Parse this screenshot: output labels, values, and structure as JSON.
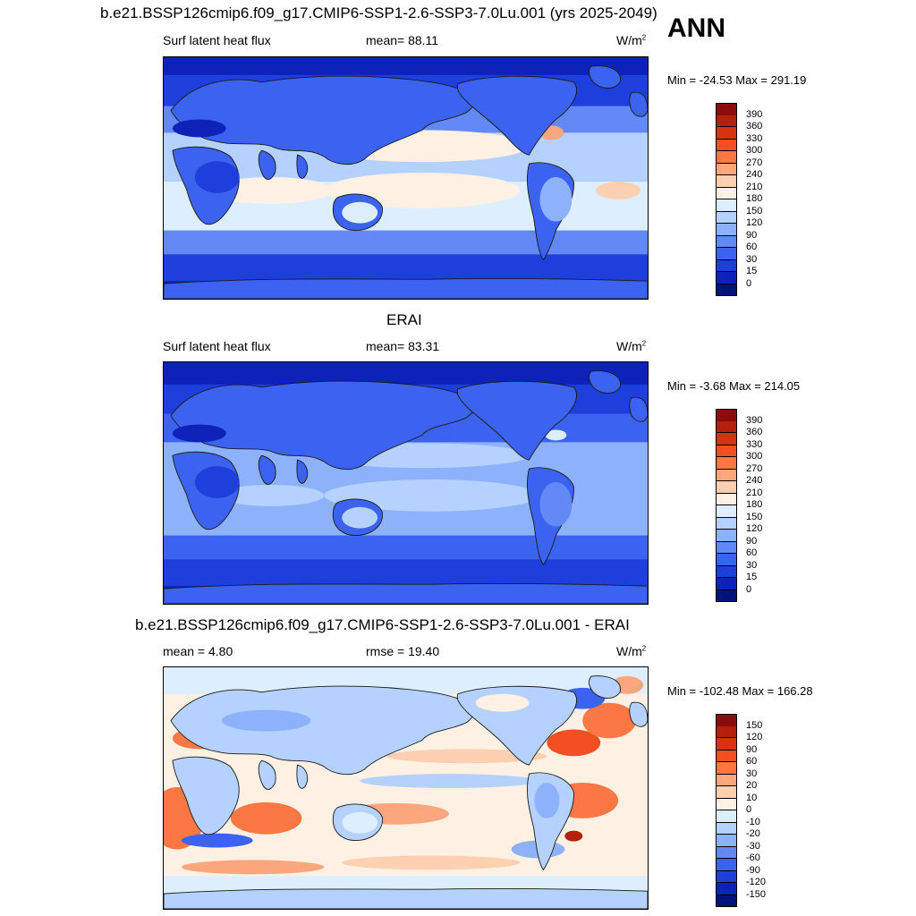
{
  "header": {
    "title": "b.e21.BSSP126cmip6.f09_g17.CMIP6-SSP1-2.6-SSP3-7.0Lu.001 (yrs 2025-2049)",
    "season": "ANN"
  },
  "panels": [
    {
      "id": "model",
      "title": "",
      "left_label": "Surf latent heat flux",
      "center_label": "mean=  88.11",
      "units_base": "W/m",
      "units_exp": "2",
      "minmax": "Min = -24.53 Max = 291.19",
      "colorbar": {
        "levels": [
          "390",
          "360",
          "330",
          "300",
          "270",
          "240",
          "210",
          "180",
          "150",
          "120",
          "90",
          "60",
          "30",
          "15",
          "0"
        ],
        "colors": [
          "#8b0c0c",
          "#b4200c",
          "#d83310",
          "#f25022",
          "#fb7844",
          "#fca67e",
          "#fdd0b2",
          "#fff0e4",
          "#dceeff",
          "#b5d1ff",
          "#8db1fb",
          "#6289f5",
          "#3c63ef",
          "#1f3fdc",
          "#0c22b8",
          "#00137c"
        ]
      }
    },
    {
      "id": "obs",
      "title": "ERAI",
      "left_label": "Surf latent heat flux",
      "center_label": "mean=  83.31",
      "units_base": "W/m",
      "units_exp": "2",
      "minmax": "Min =  -3.68 Max = 214.05",
      "colorbar": {
        "levels": [
          "390",
          "360",
          "330",
          "300",
          "270",
          "240",
          "210",
          "180",
          "150",
          "120",
          "90",
          "60",
          "30",
          "15",
          "0"
        ],
        "colors": [
          "#8b0c0c",
          "#b4200c",
          "#d83310",
          "#f25022",
          "#fb7844",
          "#fca67e",
          "#fdd0b2",
          "#fff0e4",
          "#dceeff",
          "#b5d1ff",
          "#8db1fb",
          "#6289f5",
          "#3c63ef",
          "#1f3fdc",
          "#0c22b8",
          "#00137c"
        ]
      }
    },
    {
      "id": "diff",
      "title": "b.e21.BSSP126cmip6.f09_g17.CMIP6-SSP1-2.6-SSP3-7.0Lu.001 - ERAI",
      "left_label": "mean =   4.80",
      "center_label": "rmse =  19.40",
      "units_base": "W/m",
      "units_exp": "2",
      "minmax": "Min = -102.48 Max = 166.28",
      "colorbar": {
        "levels": [
          "150",
          "120",
          "90",
          "60",
          "30",
          "20",
          "10",
          "0",
          "-10",
          "-20",
          "-30",
          "-60",
          "-90",
          "-120",
          "-150"
        ],
        "colors": [
          "#8b0c0c",
          "#b4200c",
          "#d83310",
          "#f25022",
          "#fb7844",
          "#fca67e",
          "#fdd0b2",
          "#fff0e4",
          "#dceeff",
          "#b5d1ff",
          "#8db1fb",
          "#6289f5",
          "#3c63ef",
          "#1f3fdc",
          "#0c22b8",
          "#00137c"
        ]
      }
    }
  ]
}
